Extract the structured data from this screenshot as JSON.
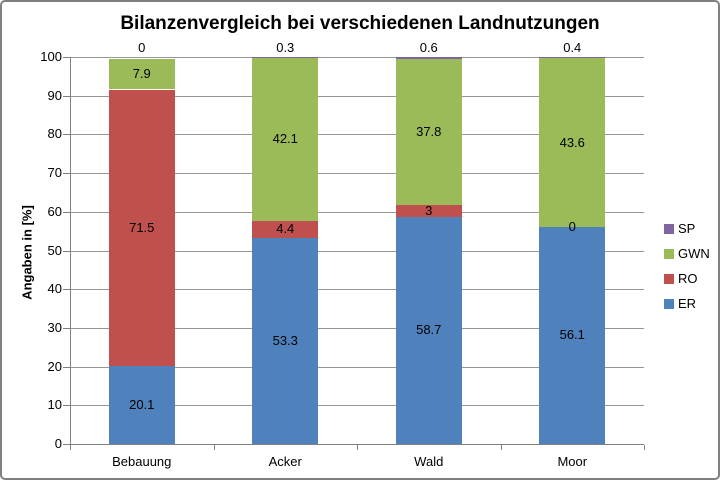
{
  "chart_data": {
    "type": "bar",
    "stacked": true,
    "title": "Bilanzenvergleich bei verschiedenen Landnutzungen",
    "ylabel": "Angaben in [%]",
    "xlabel": "",
    "ylim": [
      0,
      100
    ],
    "ytick_step": 10,
    "grid": true,
    "legend_position": "right",
    "categories": [
      "Bebauung",
      "Acker",
      "Wald",
      "Moor"
    ],
    "series": [
      {
        "name": "ER",
        "color": "#4F81BD",
        "pattern": "solid",
        "label_position": "center",
        "values": [
          20.1,
          53.3,
          58.7,
          56.1
        ],
        "labels": [
          "20.1",
          "53.3",
          "58.7",
          "56.1"
        ]
      },
      {
        "name": "RO",
        "color": "#C0504D",
        "pattern": "dotted",
        "label_position": "center",
        "values": [
          71.5,
          4.4,
          3,
          0
        ],
        "labels": [
          "71.5",
          "4.4",
          "3",
          "0"
        ]
      },
      {
        "name": "GWN",
        "color": "#9BBB59",
        "pattern": "solid",
        "label_position": "center",
        "values": [
          7.9,
          42.1,
          37.8,
          43.6
        ],
        "labels": [
          "7.9",
          "42.1",
          "37.8",
          "43.6"
        ]
      },
      {
        "name": "SP",
        "color": "#8064A2",
        "pattern": "solid",
        "label_position": "outside-top",
        "values": [
          0,
          0.3,
          0.6,
          0.4
        ],
        "labels": [
          "0",
          "0.3",
          "0.6",
          "0.4"
        ]
      }
    ],
    "legend_order": [
      "SP",
      "GWN",
      "RO",
      "ER"
    ],
    "colors": {
      "gridline": "#969696",
      "axis": "#808080",
      "text": "#000000",
      "frame_border": "#808080",
      "background": "#FFFFFF"
    }
  }
}
